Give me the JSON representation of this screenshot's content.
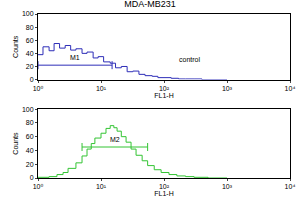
{
  "chart_data": [
    {
      "type": "line",
      "title": "MDA-MB231",
      "color": "#2e2eb8",
      "x_label": "FL1-H",
      "y_label": "Counts",
      "log": "x",
      "grid": false,
      "x": [
        1,
        1.2,
        1.5,
        1.8,
        2.2,
        2.7,
        3.3,
        4,
        5,
        6,
        7.5,
        9,
        11,
        14,
        17,
        21,
        26,
        32,
        40,
        50,
        65,
        80,
        100,
        130,
        170,
        220,
        300,
        400,
        600,
        1000
      ],
      "values": [
        38,
        50,
        44,
        55,
        48,
        52,
        45,
        47,
        40,
        42,
        33,
        35,
        27,
        25,
        18,
        20,
        12,
        13,
        8,
        6,
        5,
        3,
        3,
        2,
        1,
        1,
        1,
        0,
        0,
        0
      ],
      "xlim": [
        1,
        10000
      ],
      "xticks": [
        {
          "value": 1,
          "label": "10⁰"
        },
        {
          "value": 10,
          "label": "10¹"
        },
        {
          "value": 100,
          "label": "10²"
        },
        {
          "value": 1000,
          "label": "10³"
        },
        {
          "value": 10000,
          "label": "10⁴"
        }
      ],
      "ylim": [
        0,
        100
      ],
      "yticks": [
        0,
        20,
        40,
        60,
        80,
        100
      ],
      "gate": {
        "label": "M1",
        "x": [
          1,
          15
        ],
        "y": 22
      },
      "annotations": [
        {
          "text": "control",
          "x": 250,
          "y": 22
        }
      ]
    },
    {
      "type": "line",
      "color": "#33c433",
      "x_label": "FL1-H",
      "y_label": "Counts",
      "log": "x",
      "grid": false,
      "x": [
        1,
        1.5,
        2,
        2.5,
        3,
        4,
        5,
        6,
        7,
        8,
        10,
        12,
        14,
        16,
        18,
        21,
        25,
        30,
        36,
        45,
        55,
        70,
        90,
        120,
        160,
        220,
        300,
        500,
        1000
      ],
      "values": [
        1,
        2,
        5,
        8,
        14,
        22,
        32,
        42,
        50,
        58,
        65,
        72,
        76,
        73,
        68,
        60,
        52,
        42,
        33,
        25,
        18,
        12,
        8,
        5,
        3,
        2,
        1,
        0,
        0
      ],
      "xlim": [
        1,
        10000
      ],
      "xticks": [
        {
          "value": 1,
          "label": "10⁰"
        },
        {
          "value": 10,
          "label": "10¹"
        },
        {
          "value": 100,
          "label": "10²"
        },
        {
          "value": 1000,
          "label": "10³"
        },
        {
          "value": 10000,
          "label": "10⁴"
        }
      ],
      "ylim": [
        0,
        100
      ],
      "yticks": [
        0,
        20,
        40,
        60,
        80,
        100
      ],
      "gate": {
        "label": "M2",
        "x": [
          5,
          55
        ],
        "y": 45
      }
    }
  ]
}
